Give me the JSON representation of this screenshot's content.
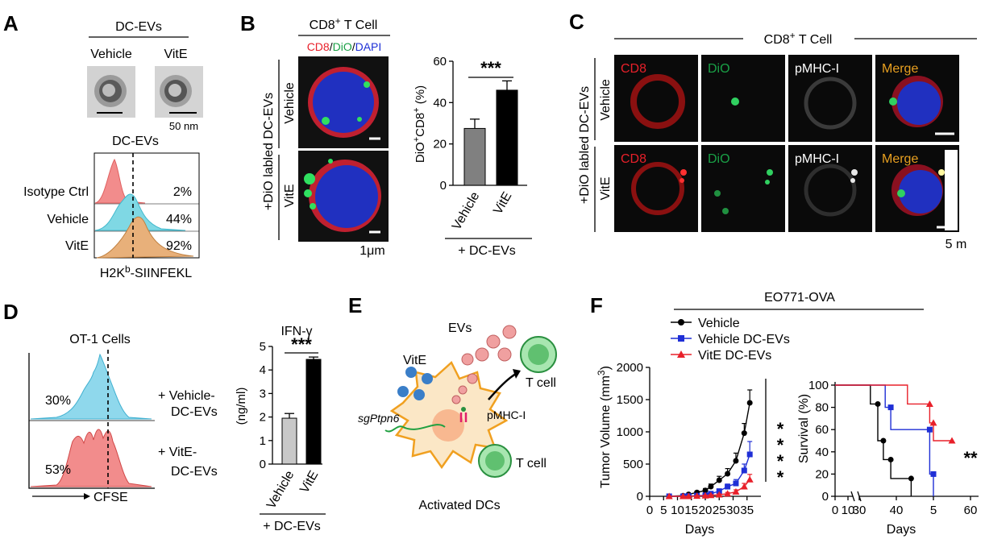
{
  "panels": {
    "A": {
      "letter": "A",
      "top_group": "DC-EVs",
      "em_labels": [
        "Vehicle",
        "VitE"
      ],
      "scale": "50 nm",
      "hist_title": "DC-EVs",
      "rows": [
        {
          "label": "Isotype Ctrl",
          "pct": "2%",
          "color": "#f28c8c"
        },
        {
          "label": "Vehicle",
          "pct": "44%",
          "color": "#7fd8e4"
        },
        {
          "label": "VitE",
          "pct": "92%",
          "color": "#e8b07a"
        }
      ],
      "xaxis_main": "H2K",
      "xaxis_sup": "b",
      "xaxis_rest": "-SIINFEKL"
    },
    "B": {
      "letter": "B",
      "cell_title": "CD8",
      "cell_sup": "+",
      "cell_rest": " T Cell",
      "stain": [
        {
          "text": "CD8",
          "color": "#e8202a"
        },
        {
          "text": "/",
          "color": "#000000"
        },
        {
          "text": "DiO",
          "color": "#1aa046"
        },
        {
          "text": "/",
          "color": "#000000"
        },
        {
          "text": "DAPI",
          "color": "#1d2fd6"
        }
      ],
      "side_label": "+DiO labled DC-EVs",
      "row_labels": [
        "Vehicle",
        "VitE"
      ],
      "scale": "1μm"
    },
    "C": {
      "letter": "C",
      "title": "CD8",
      "title_sup": "+",
      "title_rest": " T Cell",
      "side_label": "+DiO labled DC-EVs",
      "row_labels": [
        "Vehicle",
        "VitE"
      ],
      "channels": [
        {
          "text": "CD8",
          "color": "#e8202a"
        },
        {
          "text": "DiO",
          "color": "#1aa046"
        },
        {
          "text": "pMHC-I",
          "color": "#ffffff"
        },
        {
          "text": "Merge",
          "color": "#e8a020"
        }
      ],
      "scale": "5 m"
    },
    "D": {
      "letter": "D",
      "hist_title": "OT-1 Cells",
      "rows": [
        {
          "pct": "30%",
          "label1": "+ Vehicle-",
          "label2": "DC-EVs",
          "color": "#8fd8ec"
        },
        {
          "pct": "53%",
          "label1": "+ VitE-",
          "label2": "DC-EVs",
          "color": "#f28c8c"
        }
      ],
      "xaxis": "CFSE"
    },
    "E": {
      "letter": "E",
      "labels": {
        "evs": "EVs",
        "vite": "VitE",
        "tcell_top": "T cell",
        "pmhc": "pMHC-I",
        "sgptpn6": "sgPtpn6",
        "tcell_bottom": "T cell",
        "caption": "Activated DCs"
      }
    },
    "F": {
      "letter": "F",
      "group_title": "EO771-OVA",
      "legend": [
        {
          "name": "Vehicle",
          "color": "#000000",
          "marker": "circle"
        },
        {
          "name": "Vehicle DC-EVs",
          "color": "#1f2fd6",
          "marker": "square"
        },
        {
          "name": "VitE DC-EVs",
          "color": "#e8202a",
          "marker": "triangle"
        }
      ],
      "ylabel_main": "Tumor Volume (mm",
      "ylabel_sup": "3",
      "ylabel_end": ")",
      "xlabel_tumor": "Days",
      "sig_tumor": [
        "*",
        "*",
        "*",
        "*"
      ],
      "ylabel_surv": "Survival (%)",
      "xlabel_surv": "Days",
      "sig_surv": "**"
    }
  },
  "chart_data": [
    {
      "id": "B-bar",
      "type": "bar",
      "categories": [
        "Vehicle",
        "VitE"
      ],
      "values": [
        27.5,
        46
      ],
      "errors": [
        4.5,
        4.5
      ],
      "colors": [
        "#808080",
        "#000000"
      ],
      "ylabel_main": "DiO",
      "ylabel_sup1": "+",
      "ylabel_mid": "CD8",
      "ylabel_sup2": "+",
      "ylabel_end": " (%)",
      "ylim": [
        0,
        60
      ],
      "yticks": [
        0,
        20,
        40,
        60
      ],
      "group_label": "+ DC-EVs",
      "significance": "***"
    },
    {
      "id": "D-bar",
      "type": "bar",
      "title": "IFN-γ",
      "categories": [
        "Vehicle",
        "VitE"
      ],
      "values": [
        1.95,
        4.45
      ],
      "errors": [
        0.2,
        0.1
      ],
      "colors": [
        "#c8c8c8",
        "#000000"
      ],
      "ylabel": "(ng/ml)",
      "ylim": [
        0,
        5
      ],
      "yticks": [
        0,
        1,
        2,
        3,
        4,
        5
      ],
      "group_label": "+ DC-EVs",
      "significance": "***"
    },
    {
      "id": "F-tumor",
      "type": "line",
      "xlabel": "Days",
      "ylabel": "Tumor Volume (mm3)",
      "xlim": [
        0,
        40
      ],
      "ylim": [
        0,
        2000
      ],
      "xticks": [
        0,
        5,
        10,
        15,
        20,
        25,
        30,
        35
      ],
      "yticks": [
        0,
        500,
        1000,
        1500,
        2000
      ],
      "series": [
        {
          "name": "Vehicle",
          "color": "#000000",
          "marker": "circle",
          "x": [
            7,
            12,
            14,
            17,
            20,
            22,
            25,
            28,
            31,
            34,
            36
          ],
          "y": [
            0,
            10,
            30,
            60,
            90,
            150,
            250,
            350,
            550,
            980,
            1450
          ],
          "err": [
            0,
            5,
            10,
            20,
            30,
            40,
            60,
            80,
            120,
            150,
            200
          ]
        },
        {
          "name": "Vehicle DC-EVs",
          "color": "#1f2fd6",
          "marker": "square",
          "x": [
            7,
            12,
            14,
            17,
            20,
            22,
            25,
            28,
            31,
            34,
            36
          ],
          "y": [
            0,
            0,
            5,
            10,
            15,
            40,
            80,
            150,
            200,
            400,
            650
          ],
          "err": [
            0,
            0,
            5,
            5,
            10,
            15,
            25,
            40,
            60,
            100,
            200
          ]
        },
        {
          "name": "VitE DC-EVs",
          "color": "#e8202a",
          "marker": "triangle",
          "x": [
            7,
            12,
            14,
            17,
            20,
            22,
            25,
            28,
            31,
            34,
            36
          ],
          "y": [
            0,
            0,
            0,
            5,
            10,
            15,
            25,
            40,
            70,
            150,
            260
          ],
          "err": [
            0,
            0,
            0,
            5,
            5,
            10,
            10,
            20,
            30,
            50,
            80
          ]
        }
      ]
    },
    {
      "id": "F-survival",
      "type": "line",
      "xlabel": "Days",
      "ylabel": "Survival (%)",
      "ylim": [
        0,
        100
      ],
      "yticks": [
        0,
        20,
        40,
        60,
        80,
        100
      ],
      "xtick_labels": [
        "0",
        "10",
        "30",
        "40",
        "5",
        "60"
      ],
      "series": [
        {
          "name": "Vehicle",
          "color": "#000000",
          "marker": "circle",
          "steps": [
            [
              0,
              100
            ],
            [
              33,
              100
            ],
            [
              33,
              83
            ],
            [
              35,
              83
            ],
            [
              35,
              50
            ],
            [
              36.5,
              50
            ],
            [
              36.5,
              33
            ],
            [
              38.5,
              33
            ],
            [
              38.5,
              16
            ],
            [
              44,
              16
            ],
            [
              44,
              0
            ]
          ]
        },
        {
          "name": "Vehicle DC-EVs",
          "color": "#1f2fd6",
          "marker": "square",
          "steps": [
            [
              0,
              100
            ],
            [
              37,
              100
            ],
            [
              37,
              80
            ],
            [
              38.5,
              80
            ],
            [
              38.5,
              60
            ],
            [
              49,
              60
            ],
            [
              49,
              20
            ],
            [
              50,
              20
            ],
            [
              50,
              0
            ]
          ]
        },
        {
          "name": "VitE DC-EVs",
          "color": "#e8202a",
          "marker": "triangle",
          "steps": [
            [
              0,
              100
            ],
            [
              43,
              100
            ],
            [
              43,
              83
            ],
            [
              49,
              83
            ],
            [
              49,
              66
            ],
            [
              50,
              66
            ],
            [
              50,
              50
            ],
            [
              55,
              50
            ]
          ]
        }
      ]
    }
  ]
}
